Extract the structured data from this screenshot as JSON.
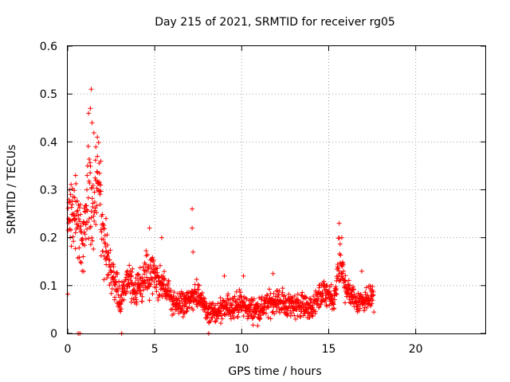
{
  "chart_data": {
    "type": "scatter",
    "title": "Day 215 of 2021, SRMTID for receiver rg05",
    "xlabel": "GPS time / hours",
    "ylabel": "SRMTID / TECUs",
    "xlim": [
      0,
      24
    ],
    "ylim": [
      0,
      0.6
    ],
    "xticks": [
      "0",
      "5",
      "10",
      "15",
      "20"
    ],
    "xtick_values": [
      0,
      5,
      10,
      15,
      20
    ],
    "yticks": [
      "0",
      "0.1",
      "0.2",
      "0.3",
      "0.4",
      "0.5",
      "0.6"
    ],
    "ytick_values": [
      0,
      0.1,
      0.2,
      0.3,
      0.4,
      0.5,
      0.6
    ],
    "grid": true,
    "marker": "+",
    "series_color": "#ff0000",
    "x_range_of_data": [
      0,
      17.6
    ],
    "envelope": [
      {
        "x": 0.0,
        "y": 0.24
      },
      {
        "x": 0.2,
        "y": 0.25
      },
      {
        "x": 0.4,
        "y": 0.26
      },
      {
        "x": 0.6,
        "y": 0.23
      },
      {
        "x": 0.8,
        "y": 0.2
      },
      {
        "x": 1.0,
        "y": 0.2
      },
      {
        "x": 1.2,
        "y": 0.32
      },
      {
        "x": 1.4,
        "y": 0.3
      },
      {
        "x": 1.6,
        "y": 0.33
      },
      {
        "x": 1.8,
        "y": 0.3
      },
      {
        "x": 2.0,
        "y": 0.2
      },
      {
        "x": 2.2,
        "y": 0.17
      },
      {
        "x": 2.5,
        "y": 0.13
      },
      {
        "x": 2.8,
        "y": 0.1
      },
      {
        "x": 3.0,
        "y": 0.07
      },
      {
        "x": 3.5,
        "y": 0.11
      },
      {
        "x": 4.0,
        "y": 0.09
      },
      {
        "x": 4.5,
        "y": 0.12
      },
      {
        "x": 5.0,
        "y": 0.12
      },
      {
        "x": 5.5,
        "y": 0.1
      },
      {
        "x": 6.0,
        "y": 0.07
      },
      {
        "x": 6.5,
        "y": 0.06
      },
      {
        "x": 7.0,
        "y": 0.07
      },
      {
        "x": 7.5,
        "y": 0.08
      },
      {
        "x": 8.0,
        "y": 0.05
      },
      {
        "x": 8.5,
        "y": 0.04
      },
      {
        "x": 9.0,
        "y": 0.05
      },
      {
        "x": 9.5,
        "y": 0.06
      },
      {
        "x": 10.0,
        "y": 0.06
      },
      {
        "x": 10.5,
        "y": 0.05
      },
      {
        "x": 11.0,
        "y": 0.05
      },
      {
        "x": 11.5,
        "y": 0.06
      },
      {
        "x": 12.0,
        "y": 0.07
      },
      {
        "x": 12.5,
        "y": 0.06
      },
      {
        "x": 13.0,
        "y": 0.06
      },
      {
        "x": 13.5,
        "y": 0.06
      },
      {
        "x": 14.0,
        "y": 0.05
      },
      {
        "x": 14.5,
        "y": 0.08
      },
      {
        "x": 15.0,
        "y": 0.08
      },
      {
        "x": 15.3,
        "y": 0.06
      },
      {
        "x": 15.6,
        "y": 0.15
      },
      {
        "x": 15.8,
        "y": 0.12
      },
      {
        "x": 16.0,
        "y": 0.1
      },
      {
        "x": 16.5,
        "y": 0.07
      },
      {
        "x": 17.0,
        "y": 0.07
      },
      {
        "x": 17.6,
        "y": 0.08
      }
    ],
    "spikes": [
      {
        "x": 1.35,
        "y": 0.51
      },
      {
        "x": 1.3,
        "y": 0.47
      },
      {
        "x": 1.4,
        "y": 0.44
      },
      {
        "x": 1.7,
        "y": 0.41
      },
      {
        "x": 1.9,
        "y": 0.36
      },
      {
        "x": 0.45,
        "y": 0.33
      },
      {
        "x": 0.1,
        "y": 0.3
      },
      {
        "x": 1.1,
        "y": 0.3
      },
      {
        "x": 2.2,
        "y": 0.24
      },
      {
        "x": 4.7,
        "y": 0.22
      },
      {
        "x": 7.15,
        "y": 0.26
      },
      {
        "x": 7.15,
        "y": 0.22
      },
      {
        "x": 5.4,
        "y": 0.2
      },
      {
        "x": 7.2,
        "y": 0.17
      },
      {
        "x": 15.6,
        "y": 0.23
      },
      {
        "x": 15.75,
        "y": 0.2
      },
      {
        "x": 11.8,
        "y": 0.125
      },
      {
        "x": 9.0,
        "y": 0.12
      },
      {
        "x": 10.1,
        "y": 0.12
      },
      {
        "x": 16.9,
        "y": 0.13
      }
    ],
    "zero_points": [
      {
        "x": 0.6,
        "y": 0.0
      },
      {
        "x": 0.7,
        "y": 0.0
      },
      {
        "x": 3.1,
        "y": 0.0
      },
      {
        "x": 8.1,
        "y": 0.0
      }
    ]
  }
}
